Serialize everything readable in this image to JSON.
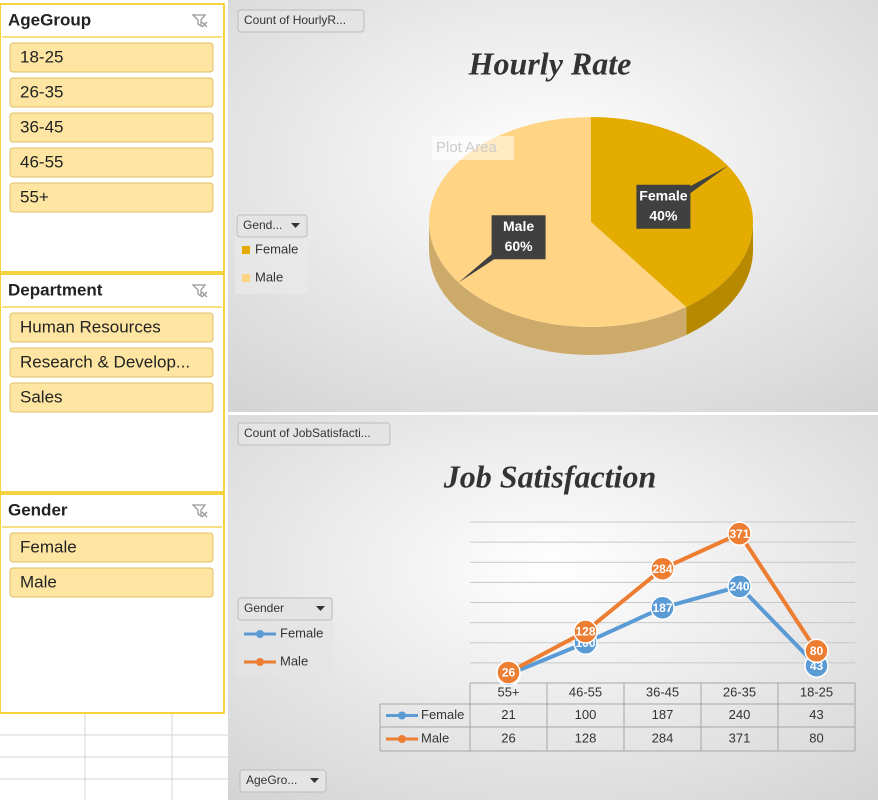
{
  "slicers": [
    {
      "title": "AgeGroup",
      "items": [
        "18-25",
        "26-35",
        "36-45",
        "46-55",
        "55+"
      ]
    },
    {
      "title": "Department",
      "items": [
        "Human Resources",
        "Research & Develop...",
        "Sales"
      ]
    },
    {
      "title": "Gender",
      "items": [
        "Female",
        "Male"
      ]
    }
  ],
  "chart_data": [
    {
      "type": "pie",
      "title": "Hourly Rate",
      "field_button": "Count of HourlyR...",
      "legend_title": "Gend...",
      "tooltip": "Plot Area",
      "categories": [
        "Female",
        "Male"
      ],
      "values": [
        40,
        60
      ],
      "value_labels": [
        "40%",
        "60%"
      ],
      "colors": [
        "#E4AC00",
        "#FFD585"
      ]
    },
    {
      "type": "line",
      "title": "Job Satisfaction",
      "field_button": "Count of JobSatisfacti...",
      "legend_title": "Gender",
      "axis_field_button": "AgeGro...",
      "categories": [
        "55+",
        "46-55",
        "36-45",
        "26-35",
        "18-25"
      ],
      "series": [
        {
          "name": "Female",
          "color": "#5B9BD5",
          "values": [
            21,
            100,
            187,
            240,
            43
          ]
        },
        {
          "name": "Male",
          "color": "#ED7D31",
          "values": [
            26,
            128,
            284,
            371,
            80
          ]
        }
      ],
      "ylim": [
        0,
        400
      ],
      "yticks": [
        0,
        50,
        100,
        150,
        200,
        250,
        300,
        350,
        400
      ],
      "grid": true,
      "tick_labels": false
    }
  ]
}
